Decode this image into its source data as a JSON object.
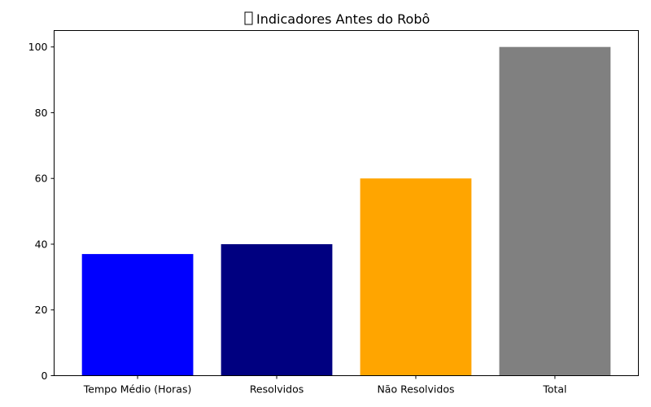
{
  "chart_data": {
    "type": "bar",
    "title": "Indicadores Antes do Robô",
    "title_icon": "missing-glyph-box",
    "xlabel": "",
    "ylabel": "",
    "categories": [
      "Tempo Médio (Horas)",
      "Resolvidos",
      "Não Resolvidos",
      "Total"
    ],
    "values": [
      37,
      40,
      60,
      100
    ],
    "colors": [
      "#0000ff",
      "#000080",
      "#ffa500",
      "#808080"
    ],
    "ylim": [
      0,
      105
    ],
    "yticks": [
      0,
      20,
      40,
      60,
      80,
      100
    ],
    "grid": false,
    "legend": "none"
  }
}
